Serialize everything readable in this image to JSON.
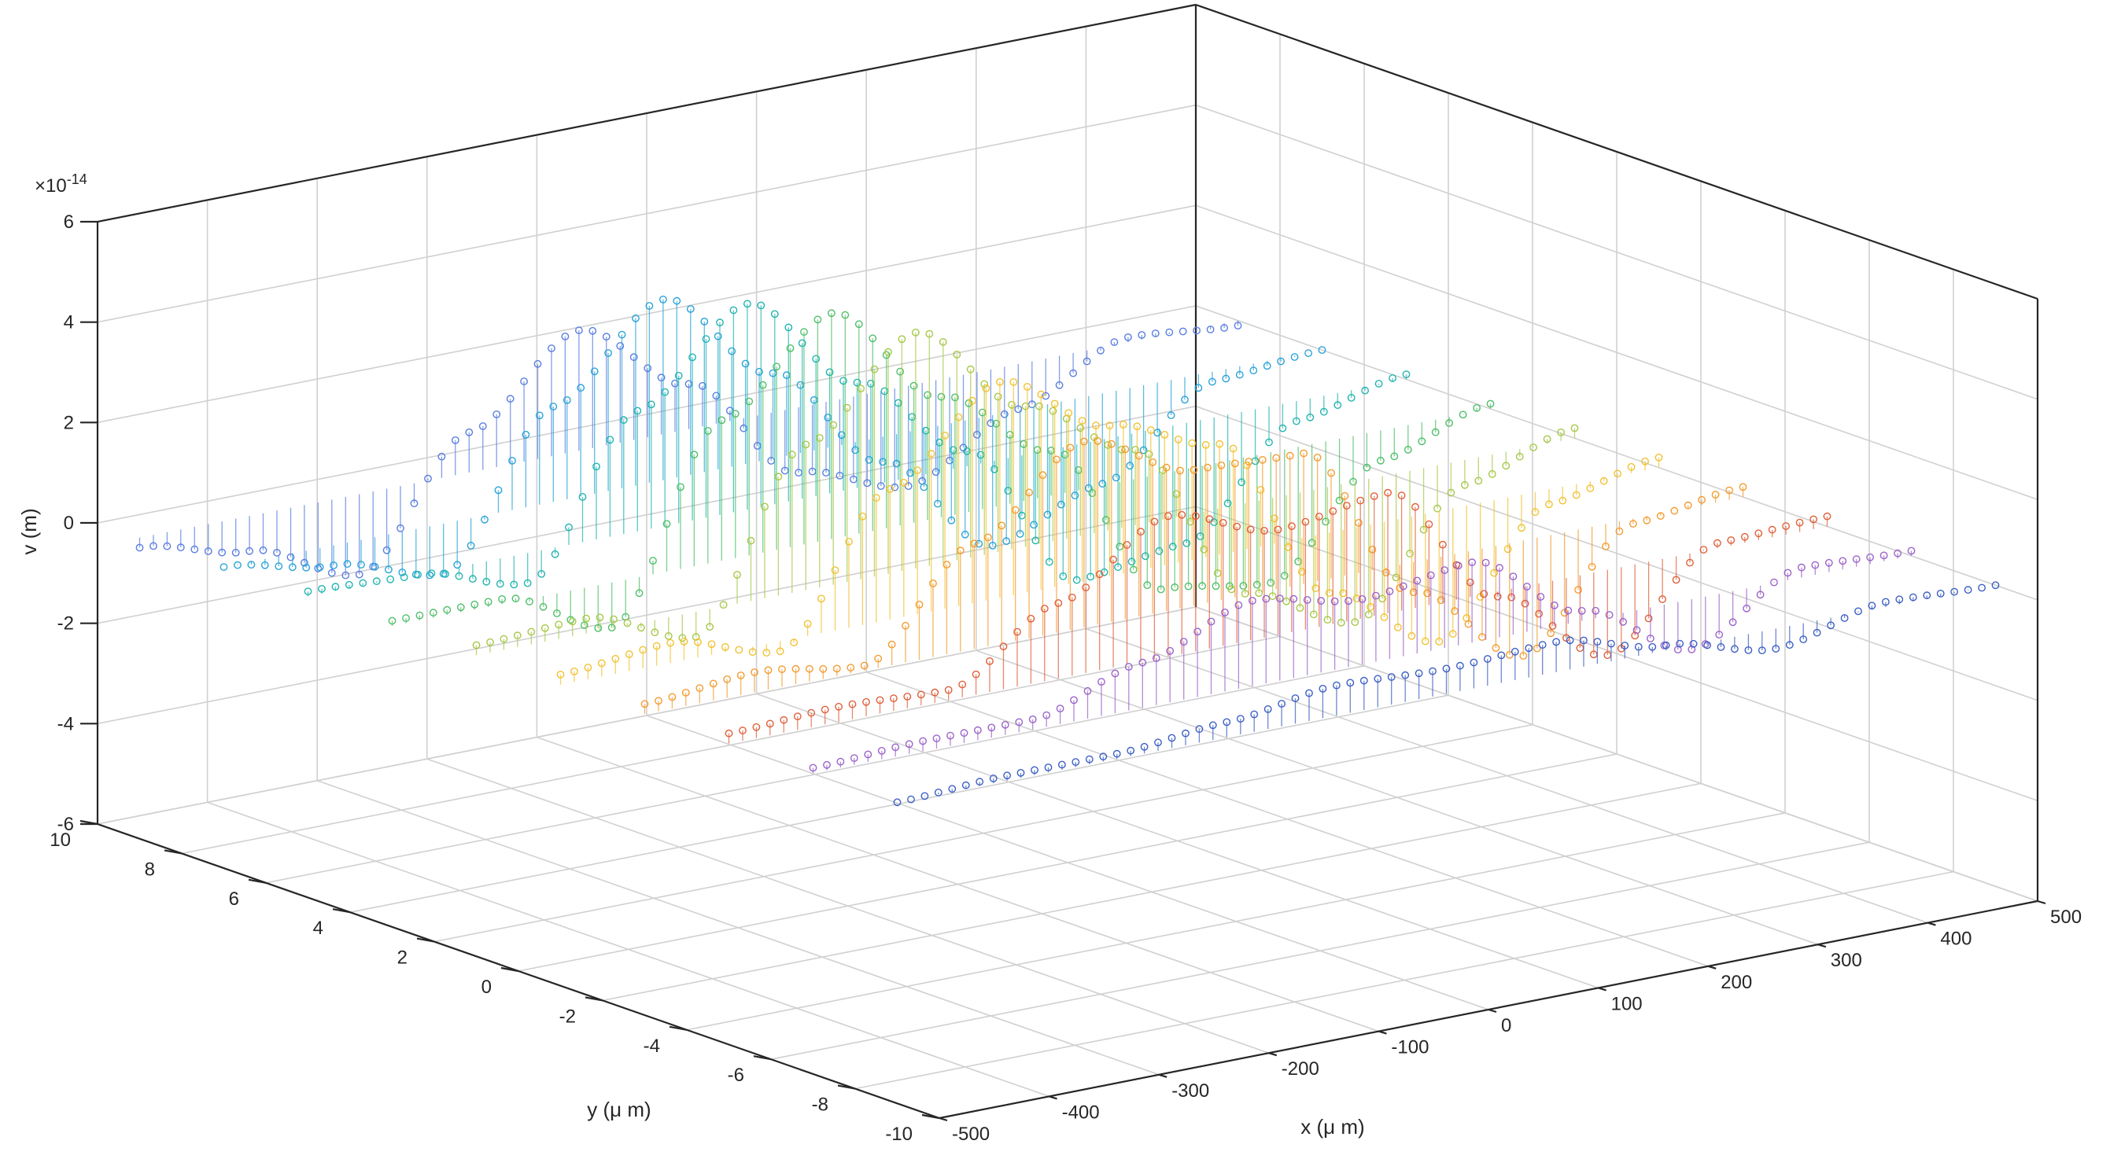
{
  "chart_data": {
    "type": "3d-stem",
    "title": "",
    "xlabel": "x (μ m)",
    "ylabel": "y (μ m)",
    "zlabel": "v (m)",
    "z_exponent_label": "×10",
    "z_exponent_power": "-14",
    "xlim": [
      -500,
      500
    ],
    "ylim": [
      -10,
      10
    ],
    "zlim": [
      -6,
      6
    ],
    "x_ticks": [
      -500,
      -400,
      -300,
      -200,
      -100,
      0,
      100,
      200,
      300,
      400,
      500
    ],
    "x_tick_labels": [
      "-500",
      "-400",
      "-300",
      "-200",
      "-100",
      "0",
      "100",
      "200",
      "300",
      "400",
      "500"
    ],
    "y_ticks": [
      -10,
      -8,
      -6,
      -4,
      -2,
      0,
      2,
      4,
      6,
      8,
      10
    ],
    "y_tick_labels": [
      "-10",
      "-8",
      "-6",
      "-4",
      "-2",
      "0",
      "2",
      "4",
      "6",
      "8",
      "10"
    ],
    "z_ticks": [
      -6,
      -4,
      -2,
      0,
      2,
      4,
      6
    ],
    "z_tick_labels": [
      "-6",
      "-4",
      "-2",
      "0",
      "2",
      "4",
      "6"
    ],
    "grid": true,
    "marker": "circle",
    "series": [
      {
        "y": 9,
        "color": "#5a7ee0",
        "x": [
          -500,
          -400,
          -300,
          -200,
          -100,
          0,
          100,
          200,
          300,
          400,
          500
        ],
        "z": [
          -0.2,
          -0.7,
          -1.6,
          0.8,
          2.4,
          0.9,
          -1.3,
          -2.0,
          -0.9,
          0.1,
          -0.1
        ]
      },
      {
        "y": 7,
        "color": "#2aa3d8",
        "x": [
          -500,
          -400,
          -300,
          -200,
          -100,
          0,
          100,
          200,
          300,
          400,
          500
        ],
        "z": [
          0.0,
          -0.4,
          -1.0,
          1.9,
          3.6,
          1.7,
          -0.5,
          -2.6,
          -1.8,
          -0.2,
          0.0
        ]
      },
      {
        "y": 5,
        "color": "#21b5b0",
        "x": [
          -500,
          -400,
          -300,
          -200,
          -100,
          0,
          100,
          200,
          300,
          400,
          500
        ],
        "z": [
          0.1,
          0.0,
          -0.6,
          2.4,
          4.1,
          2.1,
          0.3,
          -2.7,
          -2.4,
          -0.4,
          0.1
        ]
      },
      {
        "y": 3,
        "color": "#4fbf6a",
        "x": [
          -500,
          -400,
          -300,
          -200,
          -100,
          0,
          100,
          200,
          300,
          400,
          500
        ],
        "z": [
          0.1,
          0.1,
          -0.9,
          2.8,
          4.5,
          2.4,
          0.9,
          -2.3,
          -2.6,
          -0.6,
          0.1
        ]
      },
      {
        "y": 1,
        "color": "#a7c84a",
        "x": [
          -500,
          -400,
          -300,
          -200,
          -100,
          0,
          100,
          200,
          300,
          400,
          500
        ],
        "z": [
          0.2,
          0.3,
          -0.5,
          2.9,
          4.7,
          2.8,
          1.5,
          -1.8,
          -2.8,
          -0.5,
          0.2
        ]
      },
      {
        "y": -1,
        "color": "#f1c232",
        "x": [
          -500,
          -400,
          -300,
          -200,
          -100,
          0,
          100,
          200,
          300,
          400,
          500
        ],
        "z": [
          0.2,
          0.4,
          -0.2,
          2.6,
          4.3,
          3.0,
          2.2,
          -1.2,
          -2.6,
          -0.3,
          0.2
        ]
      },
      {
        "y": -3,
        "color": "#f39c30",
        "x": [
          -500,
          -400,
          -300,
          -200,
          -100,
          0,
          100,
          200,
          300,
          400,
          500
        ],
        "z": [
          0.2,
          0.4,
          0.1,
          2.1,
          3.7,
          2.7,
          2.6,
          -0.6,
          -2.3,
          -0.1,
          0.2
        ]
      },
      {
        "y": -5,
        "color": "#e0603a",
        "x": [
          -500,
          -400,
          -300,
          -200,
          -100,
          0,
          100,
          200,
          300,
          400,
          500
        ],
        "z": [
          0.2,
          0.3,
          0.2,
          1.5,
          2.8,
          2.1,
          2.4,
          -0.1,
          -1.7,
          0.1,
          0.2
        ]
      },
      {
        "y": -7,
        "color": "#9b63c9",
        "x": [
          -500,
          -400,
          -300,
          -200,
          -100,
          0,
          100,
          200,
          300,
          400,
          500
        ],
        "z": [
          0.1,
          0.2,
          0.2,
          0.9,
          1.7,
          1.3,
          1.6,
          0.2,
          -1.0,
          0.2,
          0.1
        ]
      },
      {
        "y": -9,
        "color": "#3d5fc4",
        "x": [
          -500,
          -400,
          -300,
          -200,
          -100,
          0,
          100,
          200,
          300,
          400,
          500
        ],
        "z": [
          0.0,
          0.1,
          0.1,
          0.3,
          0.6,
          0.5,
          0.6,
          0.1,
          -0.4,
          0.1,
          0.0
        ]
      }
    ]
  }
}
